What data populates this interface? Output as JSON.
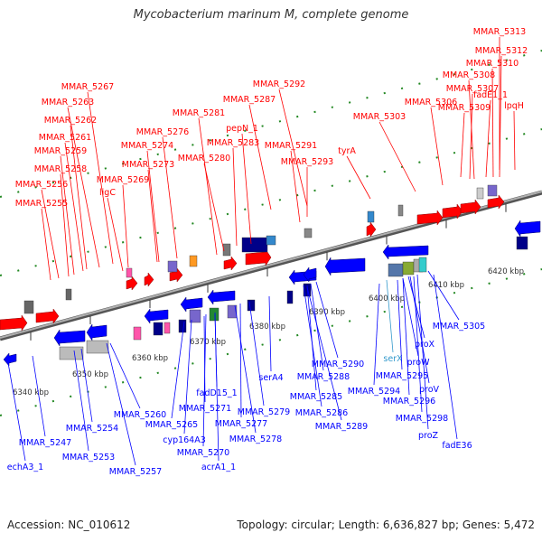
{
  "title": "Mycobacterium marinum M, complete genome",
  "footer": {
    "accession": "Accession: NC_010612",
    "topology": "Topology: circular; Length: 6,636,827 bp; Genes: 5,472"
  },
  "colors": {
    "forward_gene": "#ff0000",
    "reverse_gene": "#0000ff",
    "special_label": "#3399cc",
    "tick": "#228822",
    "backbone": "#808080"
  },
  "scale": {
    "unit": "kbp",
    "ticks": [
      "6340 kbp",
      "6350 kbp",
      "6360 kbp",
      "6370 kbp",
      "6380 kbp",
      "6390 kbp",
      "6400 kbp",
      "6410 kbp",
      "6420 kbp"
    ]
  },
  "forward_labels": [
    "MMAR_5313",
    "MMAR_5312",
    "MMAR_5310",
    "MMAR_5308",
    "MMAR_5307",
    "fadE1_1",
    "MMAR_5306",
    "MMAR_5309",
    "lpqH",
    "MMAR_5303",
    "MMAR_5292",
    "MMAR_5287",
    "MMAR_5267",
    "MMAR_5263",
    "MMAR_5262",
    "MMAR_5261",
    "MMAR_5259",
    "MMAR_5258",
    "MMAR_5256",
    "MMAR_5255",
    "ligC",
    "MMAR_5269",
    "MMAR_5273",
    "MMAR_5274",
    "MMAR_5276",
    "MMAR_5281",
    "MMAR_5283",
    "pepN_1",
    "MMAR_5280",
    "MMAR_5291",
    "MMAR_5293",
    "tyrA"
  ],
  "reverse_labels": [
    "MMAR_5305",
    "proX",
    "serX",
    "proW",
    "MMAR_5295",
    "proV",
    "MMAR_5296",
    "MMAR_5298",
    "proZ",
    "fadE36",
    "MMAR_5294",
    "MMAR_5290",
    "MMAR_5288",
    "MMAR_5285",
    "MMAR_5286",
    "MMAR_5289",
    "serA4",
    "MMAR_5279",
    "MMAR_5277",
    "MMAR_5278",
    "fadD15_1",
    "MMAR_5271",
    "MMAR_5265",
    "cyp164A3",
    "MMAR_5270",
    "acrA1_1",
    "MMAR_5260",
    "MMAR_5254",
    "MMAR_5253",
    "MMAR_5257",
    "MMAR_5247",
    "echA3_1"
  ]
}
